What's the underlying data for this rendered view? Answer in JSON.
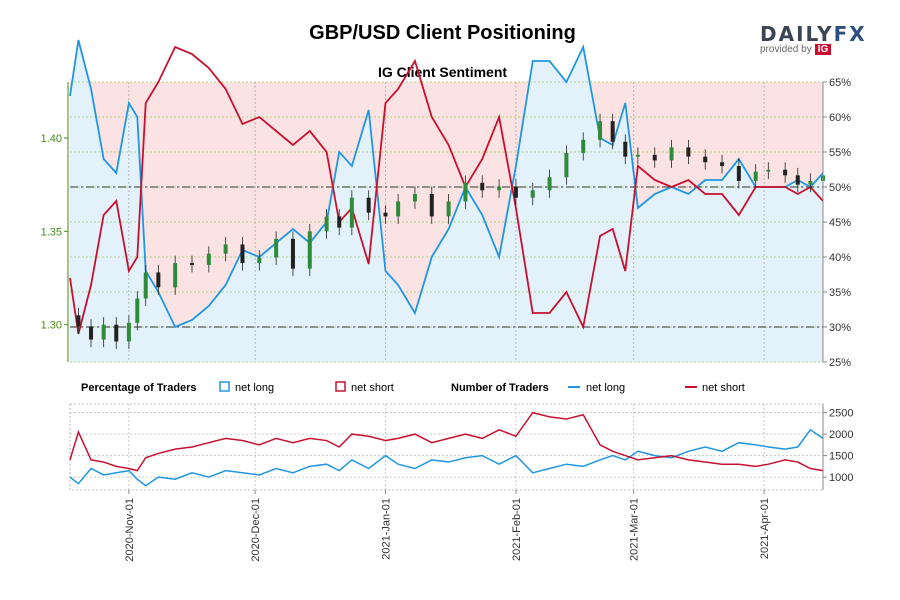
{
  "header": {
    "title": "GBP/USD Client Positioning",
    "subtitle": "IG Client Sentiment",
    "logo_text_a": "DAILY",
    "logo_text_b": "FX",
    "logo_provided_by": "provided by",
    "logo_ig": "IG"
  },
  "colors": {
    "long": "#2196e0",
    "short": "#c8102e",
    "long_fill": "#e3f1fa",
    "short_fill": "#fbe3e3",
    "candle_up": "#2e8b3a",
    "candle_down": "#222222",
    "price_axis": "#4a8a1a"
  },
  "chart_data": [
    {
      "type": "line",
      "title": "IG Client Sentiment",
      "x": [
        "2020-10-18",
        "2020-10-20",
        "2020-10-23",
        "2020-10-26",
        "2020-10-29",
        "2020-11-01",
        "2020-11-03",
        "2020-11-05",
        "2020-11-08",
        "2020-11-12",
        "2020-11-16",
        "2020-11-20",
        "2020-11-24",
        "2020-11-28",
        "2020-12-02",
        "2020-12-06",
        "2020-12-10",
        "2020-12-14",
        "2020-12-18",
        "2020-12-21",
        "2020-12-24",
        "2020-12-28",
        "2021-01-01",
        "2021-01-04",
        "2021-01-08",
        "2021-01-12",
        "2021-01-16",
        "2021-01-20",
        "2021-01-24",
        "2021-01-28",
        "2021-02-01",
        "2021-02-05",
        "2021-02-09",
        "2021-02-13",
        "2021-02-17",
        "2021-02-21",
        "2021-02-24",
        "2021-02-27",
        "2021-03-02",
        "2021-03-06",
        "2021-03-10",
        "2021-03-14",
        "2021-03-18",
        "2021-03-22",
        "2021-03-26",
        "2021-03-30",
        "2021-04-02",
        "2021-04-06",
        "2021-04-09",
        "2021-04-12",
        "2021-04-15"
      ],
      "series": [
        {
          "name": "net long",
          "values": [
            63,
            71,
            64,
            54,
            52,
            62,
            60,
            38,
            35,
            30,
            31,
            33,
            36,
            41,
            40,
            42,
            44,
            42,
            45,
            55,
            53,
            61,
            38,
            36,
            32,
            40,
            44,
            50,
            46,
            40,
            53,
            68,
            68,
            65,
            70,
            57,
            56,
            62,
            47,
            49,
            50,
            49,
            51,
            51,
            54,
            50,
            50,
            50,
            51,
            50,
            52
          ]
        },
        {
          "name": "net short",
          "values": [
            37,
            29,
            36,
            46,
            48,
            38,
            40,
            62,
            65,
            70,
            69,
            67,
            64,
            59,
            60,
            58,
            56,
            58,
            55,
            45,
            47,
            39,
            62,
            64,
            68,
            60,
            56,
            50,
            54,
            60,
            47,
            32,
            32,
            35,
            30,
            43,
            44,
            38,
            53,
            51,
            50,
            51,
            49,
            49,
            46,
            50,
            50,
            50,
            49,
            50,
            48
          ]
        }
      ],
      "price": {
        "name": "GBP/USD",
        "values": [
          1.305,
          1.299,
          1.292,
          1.3,
          1.291,
          1.301,
          1.314,
          1.328,
          1.32,
          1.333,
          1.332,
          1.338,
          1.343,
          1.333,
          1.336,
          1.346,
          1.33,
          1.35,
          1.358,
          1.352,
          1.368,
          1.36,
          1.358,
          1.366,
          1.37,
          1.358,
          1.366,
          1.376,
          1.372,
          1.374,
          1.368,
          1.372,
          1.379,
          1.392,
          1.399,
          1.409,
          1.398,
          1.39,
          1.391,
          1.388,
          1.395,
          1.39,
          1.387,
          1.385,
          1.377,
          1.382,
          1.383,
          1.38,
          1.375,
          1.377,
          1.38
        ]
      },
      "ylim_percent": [
        25,
        65
      ],
      "ylim_price": [
        1.28,
        1.43
      ],
      "y_ticks_percent": [
        "25%",
        "30%",
        "35%",
        "40%",
        "45%",
        "50%",
        "55%",
        "60%",
        "65%"
      ],
      "y_ticks_price": [
        "1.30",
        "1.35",
        "1.40"
      ],
      "reference_levels": [
        30,
        50
      ]
    },
    {
      "type": "line",
      "x": [
        "2020-10-18",
        "2020-10-20",
        "2020-10-23",
        "2020-10-26",
        "2020-10-29",
        "2020-11-01",
        "2020-11-03",
        "2020-11-05",
        "2020-11-08",
        "2020-11-12",
        "2020-11-16",
        "2020-11-20",
        "2020-11-24",
        "2020-11-28",
        "2020-12-02",
        "2020-12-06",
        "2020-12-10",
        "2020-12-14",
        "2020-12-18",
        "2020-12-21",
        "2020-12-24",
        "2020-12-28",
        "2021-01-01",
        "2021-01-04",
        "2021-01-08",
        "2021-01-12",
        "2021-01-16",
        "2021-01-20",
        "2021-01-24",
        "2021-01-28",
        "2021-02-01",
        "2021-02-05",
        "2021-02-09",
        "2021-02-13",
        "2021-02-17",
        "2021-02-21",
        "2021-02-24",
        "2021-02-27",
        "2021-03-02",
        "2021-03-06",
        "2021-03-10",
        "2021-03-14",
        "2021-03-18",
        "2021-03-22",
        "2021-03-26",
        "2021-03-30",
        "2021-04-02",
        "2021-04-06",
        "2021-04-09",
        "2021-04-12",
        "2021-04-15"
      ],
      "series": [
        {
          "name": "net long",
          "values": [
            1000,
            850,
            1200,
            1050,
            1100,
            1150,
            950,
            800,
            1000,
            950,
            1100,
            1000,
            1150,
            1100,
            1050,
            1200,
            1100,
            1250,
            1300,
            1150,
            1400,
            1200,
            1500,
            1300,
            1200,
            1400,
            1350,
            1450,
            1500,
            1300,
            1500,
            1100,
            1200,
            1300,
            1250,
            1400,
            1500,
            1400,
            1600,
            1500,
            1450,
            1600,
            1700,
            1600,
            1800,
            1750,
            1700,
            1650,
            1700,
            2100,
            1900
          ]
        },
        {
          "name": "net short",
          "values": [
            1400,
            2050,
            1400,
            1350,
            1250,
            1200,
            1150,
            1450,
            1550,
            1650,
            1700,
            1800,
            1900,
            1850,
            1750,
            1900,
            1800,
            1900,
            1850,
            1700,
            2000,
            1950,
            1850,
            1900,
            2000,
            1800,
            1900,
            2000,
            1900,
            2100,
            1950,
            2500,
            2400,
            2350,
            2450,
            1750,
            1600,
            1500,
            1400,
            1450,
            1500,
            1400,
            1350,
            1300,
            1300,
            1250,
            1300,
            1400,
            1350,
            1200,
            1150
          ]
        }
      ],
      "ylim": [
        700,
        2700
      ],
      "y_ticks": [
        "1000",
        "1500",
        "2000",
        "2500"
      ]
    }
  ],
  "legend": {
    "pct_title": "Percentage of Traders",
    "pct_long": "net long",
    "pct_short": "net short",
    "num_title": "Number of Traders",
    "num_long": "net long",
    "num_short": "net short"
  },
  "x_axis": {
    "date_labels": [
      {
        "date": "2020-11-01",
        "label": "2020-Nov-01"
      },
      {
        "date": "2020-12-01",
        "label": "2020-Dec-01"
      },
      {
        "date": "2021-01-01",
        "label": "2021-Jan-01"
      },
      {
        "date": "2021-02-01",
        "label": "2021-Feb-01"
      },
      {
        "date": "2021-03-01",
        "label": "2021-Mar-01"
      },
      {
        "date": "2021-04-01",
        "label": "2021-Apr-01"
      }
    ],
    "start": "2020-10-18",
    "end": "2021-04-15"
  }
}
